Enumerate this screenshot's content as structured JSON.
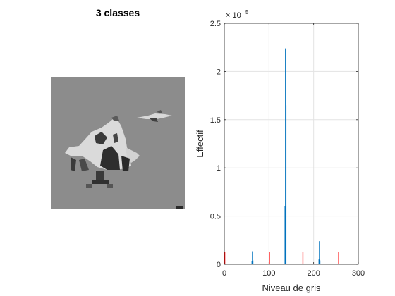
{
  "left_panel": {
    "title": "3 classes"
  },
  "chart_data": {
    "type": "bar",
    "xlabel": "Niveau de gris",
    "ylabel": "Effectif",
    "exponent_label": "× 10",
    "exponent_power": "5",
    "xlim": [
      0,
      300
    ],
    "ylim": [
      0,
      250000
    ],
    "xticks": [
      0,
      100,
      200,
      300
    ],
    "xtick_labels": [
      "0",
      "100",
      "200",
      "300"
    ],
    "yticks": [
      0,
      50000,
      100000,
      150000,
      200000,
      250000
    ],
    "ytick_labels": [
      "0",
      "0.5",
      "1",
      "1.5",
      "2",
      "2.5"
    ],
    "grid": true,
    "series": [
      {
        "color": "#0072BD",
        "x": [
          62,
          63,
          64,
          136,
          137,
          138,
          212,
          213,
          214
        ],
        "values": [
          3000,
          13500,
          4000,
          60000,
          224000,
          165000,
          5000,
          24000,
          4000
        ]
      },
      {
        "color": "#FF0000",
        "x": [
          1,
          101,
          176,
          256
        ],
        "values": [
          13000,
          13000,
          13000,
          13000
        ]
      }
    ]
  }
}
